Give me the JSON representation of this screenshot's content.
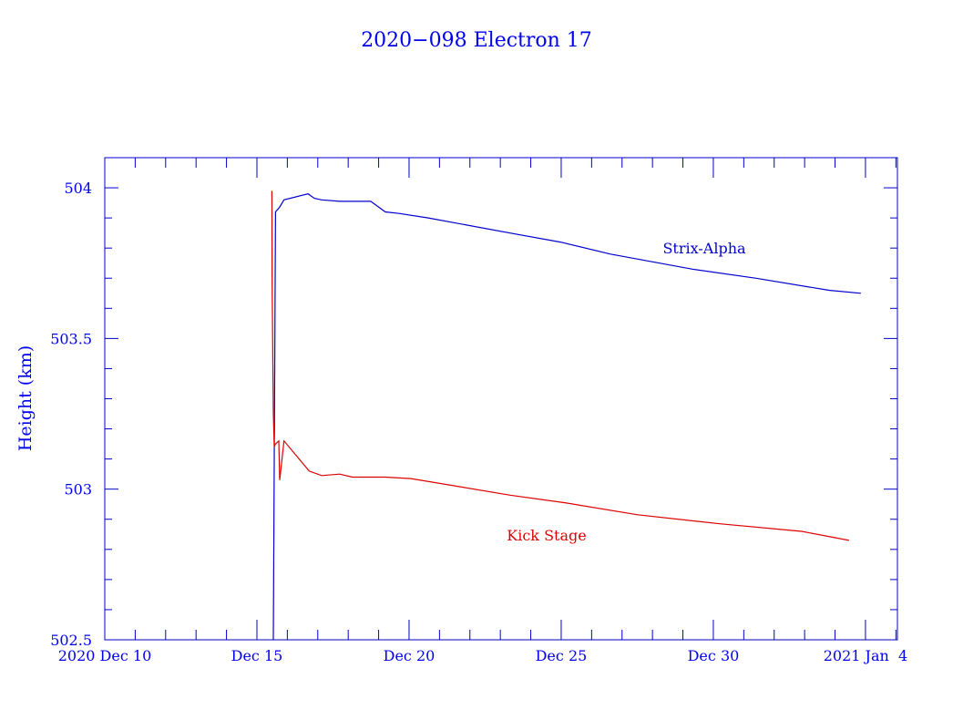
{
  "chart_data": {
    "type": "line",
    "title": "2020−098 Electron 17",
    "xlabel": "",
    "ylabel": "Height (km)",
    "x_units": "days since 2020 Dec 10",
    "xlim": [
      0,
      26.05
    ],
    "ylim": [
      502.5,
      504.1
    ],
    "grid": false,
    "x_ticks": [
      {
        "value": 0,
        "label": "2020 Dec 10"
      },
      {
        "value": 5,
        "label": "Dec 15"
      },
      {
        "value": 10,
        "label": "Dec 20"
      },
      {
        "value": 15,
        "label": "Dec 25"
      },
      {
        "value": 20,
        "label": "Dec 30"
      },
      {
        "value": 25,
        "label": "2021 Jan  4"
      }
    ],
    "y_ticks": [
      {
        "value": 502.5,
        "label": "502.5"
      },
      {
        "value": 503,
        "label": "503"
      },
      {
        "value": 503.5,
        "label": "503.5"
      },
      {
        "value": 504,
        "label": "504"
      }
    ],
    "series": [
      {
        "name": "Strix-Alpha",
        "color": "#0000cc",
        "x": [
          5.54,
          5.59,
          5.61,
          5.74,
          5.89,
          6.68,
          6.89,
          7.13,
          7.72,
          8.74,
          9.22,
          9.67,
          10.63,
          13.32,
          14.97,
          16.62,
          19.31,
          21.41,
          23.8,
          24.85
        ],
        "y": [
          502.5,
          503.5,
          503.92,
          503.935,
          503.96,
          503.98,
          503.965,
          503.96,
          503.955,
          503.955,
          503.92,
          503.915,
          503.9,
          503.85,
          503.82,
          503.78,
          503.73,
          503.7,
          503.66,
          503.65
        ]
      },
      {
        "name": "Kick Stage",
        "color": "#dd0000",
        "x": [
          5.49,
          5.5,
          5.54,
          5.57,
          5.61,
          5.72,
          5.75,
          5.89,
          6.72,
          7.13,
          7.72,
          8.14,
          9.22,
          10.06,
          13.32,
          15.12,
          17.51,
          20.21,
          22.9,
          24.46
        ],
        "y": [
          503.99,
          503.68,
          503.25,
          503.14,
          503.15,
          503.16,
          503.03,
          503.16,
          503.06,
          503.045,
          503.05,
          503.04,
          503.04,
          503.035,
          502.98,
          502.955,
          502.915,
          502.885,
          502.86,
          502.83
        ]
      }
    ],
    "annotations": [
      {
        "text": "Strix-Alpha",
        "series": "Strix-Alpha"
      },
      {
        "text": "Kick Stage",
        "series": "Kick Stage"
      }
    ]
  }
}
